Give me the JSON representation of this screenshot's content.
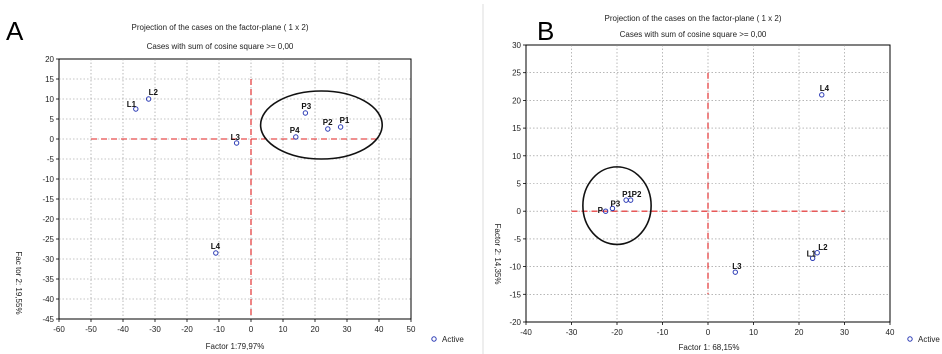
{
  "chart_data": [
    {
      "panel_letter": "A",
      "type": "scatter",
      "title": "Projection of the cases on the factor-plane ( 1 x 2)",
      "subtitle": "Cases with sum of cosine square >= 0,00",
      "xlabel": "Factor 1:79,97%",
      "ylabel": "Fac tor 2: 19,55%",
      "xlim": [
        -60,
        50
      ],
      "ylim": [
        -45,
        20
      ],
      "xticks": [
        -60,
        -50,
        -40,
        -30,
        -20,
        -10,
        0,
        10,
        20,
        30,
        40,
        50
      ],
      "yticks": [
        -45,
        -40,
        -35,
        -30,
        -25,
        -20,
        -15,
        -10,
        -5,
        0,
        5,
        10,
        15,
        20
      ],
      "grid": true,
      "legend": "Active",
      "legend_position": "bottom-right, outside plot",
      "reference_lines": {
        "x": 0,
        "y": 0,
        "x_extent": [
          -50,
          40
        ],
        "y_extent": [
          -45,
          15
        ]
      },
      "circled_group": {
        "cx": 22,
        "cy": 3.5,
        "rx": 19,
        "ry": 8.5
      },
      "points": [
        {
          "label": "L1",
          "x": -36,
          "y": 7.5
        },
        {
          "label": "L2",
          "x": -32,
          "y": 10
        },
        {
          "label": "L3",
          "x": -4.5,
          "y": -1
        },
        {
          "label": "L4",
          "x": -11,
          "y": -28.5
        },
        {
          "label": "P1",
          "x": 28,
          "y": 3
        },
        {
          "label": "P2",
          "x": 24,
          "y": 2.5
        },
        {
          "label": "P3",
          "x": 17,
          "y": 6.5
        },
        {
          "label": "P4",
          "x": 14,
          "y": 0.5
        }
      ]
    },
    {
      "panel_letter": "B",
      "type": "scatter",
      "title": "Projection of the cases on the factor-plane ( 1 x 2)",
      "subtitle": "Cases with sum of cosine square >= 0,00",
      "xlabel": "Factor 1: 68,15%",
      "ylabel": "Factor 2: 14,35%",
      "xlim": [
        -40,
        40
      ],
      "ylim": [
        -20,
        30
      ],
      "xticks": [
        -40,
        -30,
        -20,
        -10,
        0,
        10,
        20,
        30,
        40
      ],
      "yticks": [
        -20,
        -15,
        -10,
        -5,
        0,
        5,
        10,
        15,
        20,
        25,
        30
      ],
      "grid": true,
      "legend": "Active",
      "legend_position": "bottom-right, outside plot",
      "reference_lines": {
        "x": 0,
        "y": 0,
        "x_extent": [
          -30,
          30
        ],
        "y_extent": [
          -15,
          25
        ]
      },
      "circled_group": {
        "cx": -20,
        "cy": 1,
        "rx": 7.5,
        "ry": 7
      },
      "points": [
        {
          "label": "L1",
          "x": 23,
          "y": -8.5
        },
        {
          "label": "L2",
          "x": 24,
          "y": -7.5
        },
        {
          "label": "L3",
          "x": 6,
          "y": -11
        },
        {
          "label": "L4",
          "x": 25,
          "y": 21
        },
        {
          "label": "P1",
          "x": -18,
          "y": 2
        },
        {
          "label": "P2",
          "x": -17,
          "y": 2
        },
        {
          "label": "P3",
          "x": -21,
          "y": 0.5
        },
        {
          "label": "P",
          "x": -22.5,
          "y": 0
        }
      ]
    }
  ]
}
